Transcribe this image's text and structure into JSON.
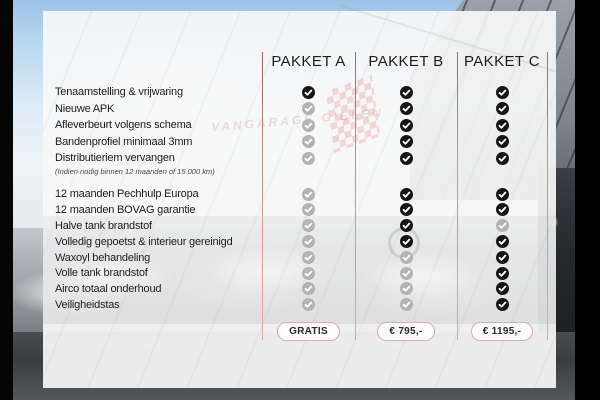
{
  "packages": [
    {
      "name": "PAKKET A",
      "price": "GRATIS"
    },
    {
      "name": "PAKKET B",
      "price": "€ 795,-"
    },
    {
      "name": "PAKKET C",
      "price": "€ 1195,-"
    }
  ],
  "feature_groups": [
    {
      "rows": [
        {
          "label": "Tenaamstelling & vrijwaring",
          "checks": [
            true,
            true,
            true
          ]
        },
        {
          "label": "Nieuwe APK",
          "checks": [
            false,
            true,
            true
          ]
        },
        {
          "label": "Afleverbeurt volgens schema",
          "checks": [
            false,
            true,
            true
          ]
        },
        {
          "label": "Bandenprofiel minimaal 3mm",
          "checks": [
            false,
            true,
            true
          ]
        },
        {
          "label": "Distributieriem vervangen",
          "note": "(Indien nodig binnen 12 maanden of 15.000 km)",
          "checks": [
            false,
            true,
            true
          ]
        }
      ]
    },
    {
      "rows": [
        {
          "label": "12 maanden Pechhulp Europa",
          "checks": [
            false,
            true,
            true
          ]
        },
        {
          "label": "12 maanden BOVAG garantie",
          "checks": [
            false,
            true,
            true
          ]
        },
        {
          "label": "Halve tank brandstof",
          "checks": [
            false,
            true,
            false
          ]
        },
        {
          "label": "Volledig gepoetst & interieur gereinigd",
          "checks": [
            false,
            true,
            true
          ]
        },
        {
          "label": "Waxoyl behandeling",
          "checks": [
            false,
            false,
            true
          ]
        },
        {
          "label": "Volle tank brandstof",
          "checks": [
            false,
            false,
            true
          ]
        },
        {
          "label": "Airco totaal onderhoud",
          "checks": [
            false,
            false,
            true
          ]
        },
        {
          "label": "Veiligheidstas",
          "checks": [
            false,
            false,
            true
          ]
        }
      ]
    }
  ],
  "watermark": {
    "sign_text": "VANGARAGE GIELEN"
  },
  "colors": {
    "check_included": "#151515",
    "check_excluded": "#b3b3b3",
    "column_rule": "#c98e8e",
    "pill_border": "#dcaeae",
    "panel_background": "#f7f7f8"
  }
}
